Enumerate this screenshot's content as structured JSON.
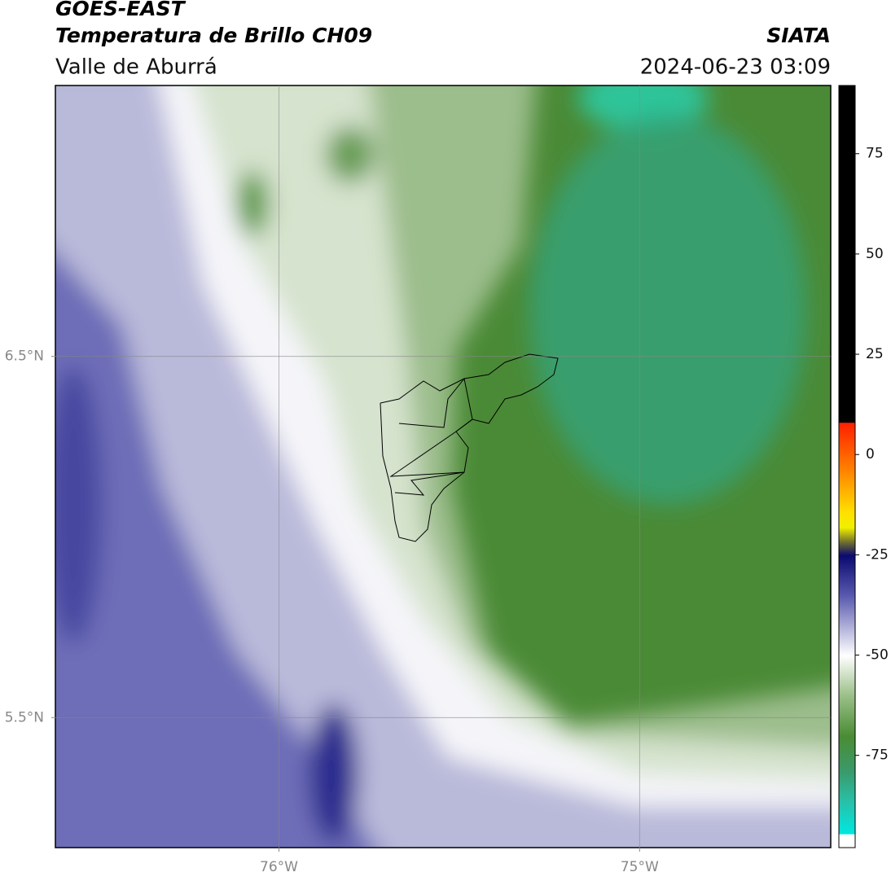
{
  "header": {
    "title": "GOES-EAST",
    "subtitle": "Temperatura de Brillo CH09",
    "source": "SIATA",
    "region": "Valle de Aburrá",
    "datetime": "2024-06-23 03:09"
  },
  "map": {
    "xlim": [
      -76.62,
      -74.47
    ],
    "ylim": [
      5.14,
      7.25
    ],
    "xticks": [
      {
        "value": -76,
        "label": "76°W"
      },
      {
        "value": -75,
        "label": "75°W"
      }
    ],
    "yticks": [
      {
        "value": 6.5,
        "label": "6.5°N"
      },
      {
        "value": 5.5,
        "label": "5.5°N"
      }
    ],
    "grid": true
  },
  "colorbar": {
    "lim": [
      -98,
      92
    ],
    "ticks": [
      75,
      50,
      25,
      0,
      -25,
      -50,
      -75
    ]
  }
}
